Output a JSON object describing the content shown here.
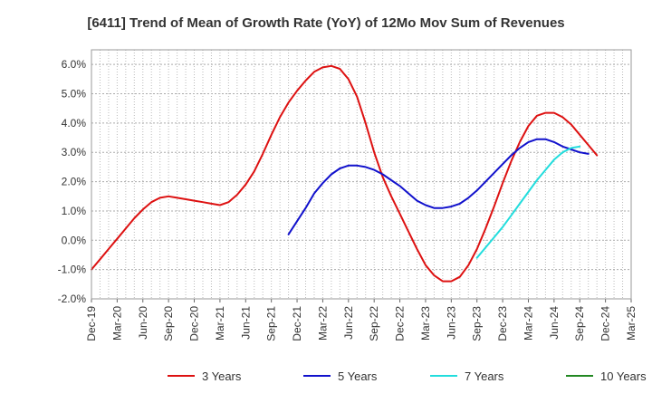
{
  "chart_data": {
    "type": "line",
    "title": "[6411]  Trend of Mean of Growth Rate (YoY) of 12Mo Mov Sum of Revenues",
    "xlabel": "",
    "ylabel": "",
    "ylim": [
      -2.0,
      6.5
    ],
    "y_ticks": [
      -2.0,
      -1.0,
      0.0,
      1.0,
      2.0,
      3.0,
      4.0,
      5.0,
      6.0
    ],
    "y_tick_labels": [
      "-2.0%",
      "-1.0%",
      "0.0%",
      "1.0%",
      "2.0%",
      "3.0%",
      "4.0%",
      "5.0%",
      "6.0%"
    ],
    "x_range": [
      "2019-12",
      "2025-03"
    ],
    "x_ticks": [
      "2019-12",
      "2020-03",
      "2020-06",
      "2020-09",
      "2020-12",
      "2021-03",
      "2021-06",
      "2021-09",
      "2021-12",
      "2022-03",
      "2022-06",
      "2022-09",
      "2022-12",
      "2023-03",
      "2023-06",
      "2023-09",
      "2023-12",
      "2024-03",
      "2024-06",
      "2024-09",
      "2024-12",
      "2025-03"
    ],
    "x_tick_labels": [
      "Dec-19",
      "Mar-20",
      "Jun-20",
      "Sep-20",
      "Dec-20",
      "Mar-21",
      "Jun-21",
      "Sep-21",
      "Dec-21",
      "Mar-22",
      "Jun-22",
      "Sep-22",
      "Dec-22",
      "Mar-23",
      "Jun-23",
      "Sep-23",
      "Dec-23",
      "Mar-24",
      "Jun-24",
      "Sep-24",
      "Dec-24",
      "Mar-25"
    ],
    "grid": true,
    "legend_position": "bottom",
    "series": [
      {
        "name": "3 Years",
        "color": "#dd1111",
        "points": [
          [
            "2019-12",
            -1.0
          ],
          [
            "2020-01",
            -0.65
          ],
          [
            "2020-02",
            -0.3
          ],
          [
            "2020-03",
            0.05
          ],
          [
            "2020-04",
            0.4
          ],
          [
            "2020-05",
            0.75
          ],
          [
            "2020-06",
            1.05
          ],
          [
            "2020-07",
            1.3
          ],
          [
            "2020-08",
            1.45
          ],
          [
            "2020-09",
            1.5
          ],
          [
            "2020-10",
            1.45
          ],
          [
            "2020-11",
            1.4
          ],
          [
            "2020-12",
            1.35
          ],
          [
            "2021-01",
            1.3
          ],
          [
            "2021-02",
            1.25
          ],
          [
            "2021-03",
            1.2
          ],
          [
            "2021-04",
            1.3
          ],
          [
            "2021-05",
            1.55
          ],
          [
            "2021-06",
            1.9
          ],
          [
            "2021-07",
            2.35
          ],
          [
            "2021-08",
            2.95
          ],
          [
            "2021-09",
            3.6
          ],
          [
            "2021-10",
            4.2
          ],
          [
            "2021-11",
            4.7
          ],
          [
            "2021-12",
            5.1
          ],
          [
            "2022-01",
            5.45
          ],
          [
            "2022-02",
            5.75
          ],
          [
            "2022-03",
            5.9
          ],
          [
            "2022-04",
            5.95
          ],
          [
            "2022-05",
            5.85
          ],
          [
            "2022-06",
            5.5
          ],
          [
            "2022-07",
            4.9
          ],
          [
            "2022-08",
            4.0
          ],
          [
            "2022-09",
            3.0
          ],
          [
            "2022-10",
            2.15
          ],
          [
            "2022-11",
            1.5
          ],
          [
            "2022-12",
            0.9
          ],
          [
            "2023-01",
            0.3
          ],
          [
            "2023-02",
            -0.3
          ],
          [
            "2023-03",
            -0.85
          ],
          [
            "2023-04",
            -1.2
          ],
          [
            "2023-05",
            -1.4
          ],
          [
            "2023-06",
            -1.4
          ],
          [
            "2023-07",
            -1.25
          ],
          [
            "2023-08",
            -0.85
          ],
          [
            "2023-09",
            -0.3
          ],
          [
            "2023-10",
            0.4
          ],
          [
            "2023-11",
            1.15
          ],
          [
            "2023-12",
            1.95
          ],
          [
            "2024-01",
            2.7
          ],
          [
            "2024-02",
            3.35
          ],
          [
            "2024-03",
            3.9
          ],
          [
            "2024-04",
            4.25
          ],
          [
            "2024-05",
            4.35
          ],
          [
            "2024-06",
            4.35
          ],
          [
            "2024-07",
            4.2
          ],
          [
            "2024-08",
            3.95
          ],
          [
            "2024-09",
            3.6
          ],
          [
            "2024-10",
            3.25
          ],
          [
            "2024-11",
            2.9
          ]
        ]
      },
      {
        "name": "5 Years",
        "color": "#1111cc",
        "points": [
          [
            "2021-11",
            0.2
          ],
          [
            "2021-12",
            0.65
          ],
          [
            "2022-01",
            1.1
          ],
          [
            "2022-02",
            1.6
          ],
          [
            "2022-03",
            1.95
          ],
          [
            "2022-04",
            2.25
          ],
          [
            "2022-05",
            2.45
          ],
          [
            "2022-06",
            2.55
          ],
          [
            "2022-07",
            2.55
          ],
          [
            "2022-08",
            2.5
          ],
          [
            "2022-09",
            2.4
          ],
          [
            "2022-10",
            2.25
          ],
          [
            "2022-11",
            2.05
          ],
          [
            "2022-12",
            1.85
          ],
          [
            "2023-01",
            1.6
          ],
          [
            "2023-02",
            1.35
          ],
          [
            "2023-03",
            1.2
          ],
          [
            "2023-04",
            1.1
          ],
          [
            "2023-05",
            1.1
          ],
          [
            "2023-06",
            1.15
          ],
          [
            "2023-07",
            1.25
          ],
          [
            "2023-08",
            1.45
          ],
          [
            "2023-09",
            1.7
          ],
          [
            "2023-10",
            2.0
          ],
          [
            "2023-11",
            2.3
          ],
          [
            "2023-12",
            2.6
          ],
          [
            "2024-01",
            2.9
          ],
          [
            "2024-02",
            3.15
          ],
          [
            "2024-03",
            3.35
          ],
          [
            "2024-04",
            3.45
          ],
          [
            "2024-05",
            3.45
          ],
          [
            "2024-06",
            3.35
          ],
          [
            "2024-07",
            3.2
          ],
          [
            "2024-08",
            3.1
          ],
          [
            "2024-09",
            3.0
          ],
          [
            "2024-10",
            2.95
          ]
        ]
      },
      {
        "name": "7 Years",
        "color": "#22dddd",
        "points": [
          [
            "2023-09",
            -0.6
          ],
          [
            "2023-10",
            -0.25
          ],
          [
            "2023-11",
            0.1
          ],
          [
            "2023-12",
            0.45
          ],
          [
            "2024-01",
            0.85
          ],
          [
            "2024-02",
            1.25
          ],
          [
            "2024-03",
            1.65
          ],
          [
            "2024-04",
            2.05
          ],
          [
            "2024-05",
            2.4
          ],
          [
            "2024-06",
            2.75
          ],
          [
            "2024-07",
            3.0
          ],
          [
            "2024-08",
            3.15
          ],
          [
            "2024-09",
            3.2
          ]
        ]
      },
      {
        "name": "10 Years",
        "color": "#228822",
        "points": []
      }
    ]
  }
}
